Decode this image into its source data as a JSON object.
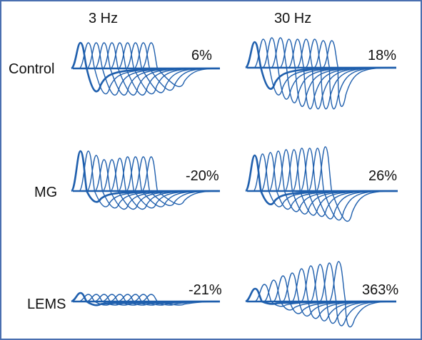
{
  "columns": {
    "hz3": "3 Hz",
    "hz30": "30 Hz"
  },
  "rows": {
    "control": "Control",
    "mg": "MG",
    "lems": "LEMS"
  },
  "percentages": {
    "control_3hz": "6%",
    "control_30hz": "18%",
    "mg_3hz": "-20%",
    "mg_30hz": "26%",
    "lems_3hz": "-21%",
    "lems_30hz": "363%"
  },
  "colors": {
    "trace": "#1f5fad",
    "border": "#4a6fb0"
  },
  "panels": [
    {
      "id": "control-3hz",
      "response_count": 10,
      "amplitude_trend": "roughly constant",
      "change_percent": 6
    },
    {
      "id": "control-30hz",
      "response_count": 10,
      "amplitude_trend": "slight increase",
      "change_percent": 18
    },
    {
      "id": "mg-3hz",
      "response_count": 10,
      "amplitude_trend": "decrement",
      "change_percent": -20
    },
    {
      "id": "mg-30hz",
      "response_count": 10,
      "amplitude_trend": "slight increase",
      "change_percent": 26
    },
    {
      "id": "lems-3hz",
      "response_count": 10,
      "amplitude_trend": "decrement, very small responses",
      "change_percent": -21
    },
    {
      "id": "lems-30hz",
      "response_count": 10,
      "amplitude_trend": "marked increment",
      "change_percent": 363
    }
  ]
}
